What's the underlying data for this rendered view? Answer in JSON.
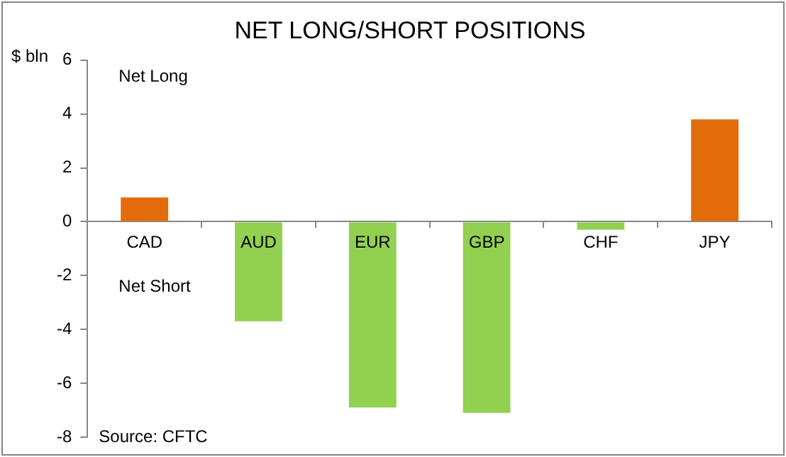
{
  "chart_data": {
    "type": "bar",
    "title": "NET LONG/SHORT POSITIONS",
    "ylabel": "$ bln",
    "categories": [
      "CAD",
      "AUD",
      "EUR",
      "GBP",
      "CHF",
      "JPY"
    ],
    "values": [
      0.9,
      -3.7,
      -6.9,
      -7.1,
      -0.3,
      3.8
    ],
    "colors": [
      "#e36c0a",
      "#92d050",
      "#92d050",
      "#92d050",
      "#92d050",
      "#e36c0a"
    ],
    "ylim": [
      -8,
      6
    ],
    "yticks": [
      -8,
      -6,
      -4,
      -2,
      0,
      2,
      4,
      6
    ],
    "grid": false,
    "legend": false,
    "annotations": [
      "Net Long",
      "Net Short",
      "Source: CFTC"
    ]
  }
}
